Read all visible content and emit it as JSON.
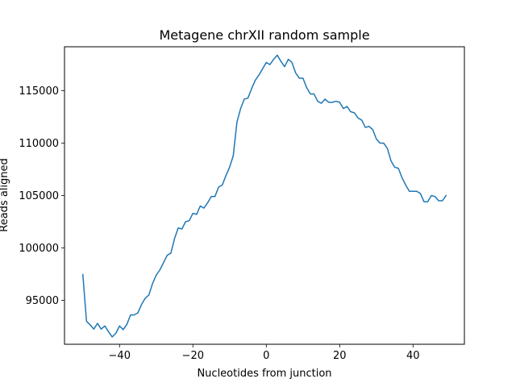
{
  "chart_data": {
    "type": "line",
    "title": "Metagene chrXII random sample",
    "xlabel": "Nucleotides from junction",
    "ylabel": "Reads aligned",
    "xlim": [
      -55,
      54
    ],
    "ylim": [
      90800,
      119200
    ],
    "xticks": [
      -40,
      -20,
      0,
      20,
      40
    ],
    "xtick_labels": [
      "−40",
      "−20",
      "0",
      "20",
      "40"
    ],
    "yticks": [
      95000,
      100000,
      105000,
      110000,
      115000
    ],
    "ytick_labels": [
      "95000",
      "100000",
      "105000",
      "110000",
      "115000"
    ],
    "grid": false,
    "legend": "none",
    "line_color": "#1f77b4",
    "series": [
      {
        "x": [
          -50,
          -49,
          -48,
          -47,
          -46,
          -45,
          -44,
          -43,
          -42,
          -41,
          -40,
          -39,
          -38,
          -37,
          -36,
          -35,
          -34,
          -33,
          -32,
          -31,
          -30,
          -29,
          -28,
          -27,
          -26,
          -25,
          -24,
          -23,
          -22,
          -21,
          -20,
          -19,
          -18,
          -17,
          -16,
          -15,
          -14,
          -13,
          -12,
          -11,
          -10,
          -9,
          -8,
          -7,
          -6,
          -5,
          -4,
          -3,
          -2,
          -1,
          0,
          1,
          2,
          3,
          4,
          5,
          6,
          7,
          8,
          9,
          10,
          11,
          12,
          13,
          14,
          15,
          16,
          17,
          18,
          19,
          20,
          21,
          22,
          23,
          24,
          25,
          26,
          27,
          28,
          29,
          30,
          31,
          32,
          33,
          34,
          35,
          36,
          37,
          38,
          39,
          40,
          41,
          42,
          43,
          44,
          45,
          46,
          47,
          48,
          49
        ],
        "y": [
          97450,
          93000,
          92650,
          92250,
          92800,
          92250,
          92550,
          92000,
          91500,
          91850,
          92550,
          92200,
          92700,
          93600,
          93600,
          93800,
          94600,
          95200,
          95500,
          96600,
          97400,
          97900,
          98600,
          99300,
          99500,
          100900,
          101900,
          101800,
          102500,
          102600,
          103300,
          103200,
          104000,
          103800,
          104300,
          104900,
          104900,
          105800,
          106000,
          106900,
          107700,
          108800,
          112000,
          113300,
          114200,
          114300,
          115200,
          116000,
          116500,
          117100,
          117700,
          117500,
          118000,
          118400,
          117800,
          117300,
          118000,
          117700,
          116700,
          116200,
          116200,
          115300,
          114700,
          114700,
          114000,
          113800,
          114200,
          113900,
          113900,
          114000,
          113900,
          113300,
          113500,
          113000,
          112900,
          112400,
          112200,
          111500,
          111600,
          111300,
          110400,
          110000,
          110000,
          109500,
          108300,
          107700,
          107600,
          106700,
          106000,
          105400,
          105400,
          105400,
          105200,
          104400,
          104400,
          105000,
          104900,
          104500,
          104500,
          105000
        ]
      }
    ]
  }
}
